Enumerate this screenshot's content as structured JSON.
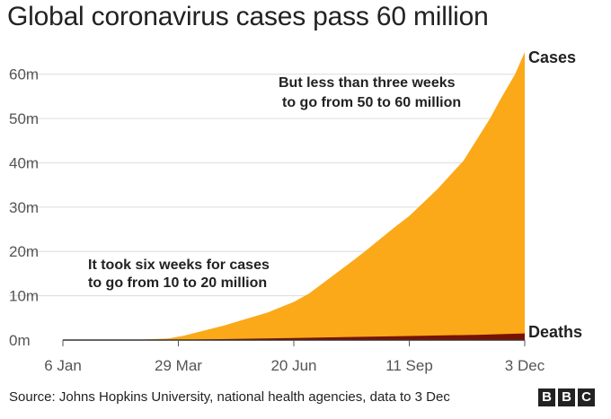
{
  "title": "Global coronavirus cases pass 60 million",
  "source": "Source: Johns Hopkins University, national health agencies, data to 3 Dec",
  "logo": [
    "B",
    "B",
    "C"
  ],
  "chart_data": {
    "type": "area",
    "x_start": "2020-01-06",
    "x_end": "2020-12-03",
    "xticks": [
      {
        "label": "6 Jan",
        "date": "2020-01-06"
      },
      {
        "label": "29 Mar",
        "date": "2020-03-29"
      },
      {
        "label": "20 Jun",
        "date": "2020-06-20"
      },
      {
        "label": "11 Sep",
        "date": "2020-09-11"
      },
      {
        "label": "3 Dec",
        "date": "2020-12-03"
      }
    ],
    "yticks": [
      {
        "label": "0m",
        "value": 0
      },
      {
        "label": "10m",
        "value": 10
      },
      {
        "label": "20m",
        "value": 20
      },
      {
        "label": "30m",
        "value": 30
      },
      {
        "label": "40m",
        "value": 40
      },
      {
        "label": "50m",
        "value": 50
      },
      {
        "label": "60m",
        "value": 60
      }
    ],
    "ylim": [
      0,
      65
    ],
    "yunit": "million",
    "grid": "horizontal",
    "series": [
      {
        "name": "Cases",
        "color": "#fba919",
        "points": [
          [
            "2020-01-06",
            0
          ],
          [
            "2020-02-01",
            0.01
          ],
          [
            "2020-03-01",
            0.09
          ],
          [
            "2020-03-22",
            0.35
          ],
          [
            "2020-04-02",
            1
          ],
          [
            "2020-05-01",
            3.3
          ],
          [
            "2020-06-01",
            6.2
          ],
          [
            "2020-06-20",
            8.6
          ],
          [
            "2020-07-01",
            10.5
          ],
          [
            "2020-08-01",
            17.8
          ],
          [
            "2020-08-10",
            20
          ],
          [
            "2020-09-01",
            25.6
          ],
          [
            "2020-09-11",
            28
          ],
          [
            "2020-10-01",
            34
          ],
          [
            "2020-10-20",
            40.5
          ],
          [
            "2020-11-01",
            46.5
          ],
          [
            "2020-11-08",
            50
          ],
          [
            "2020-11-15",
            54
          ],
          [
            "2020-11-26",
            60
          ],
          [
            "2020-12-03",
            65
          ]
        ]
      },
      {
        "name": "Deaths",
        "color": "#7b1100",
        "points": [
          [
            "2020-01-06",
            0
          ],
          [
            "2020-03-29",
            0.033
          ],
          [
            "2020-06-20",
            0.46
          ],
          [
            "2020-09-11",
            0.91
          ],
          [
            "2020-11-01",
            1.2
          ],
          [
            "2020-12-03",
            1.5
          ]
        ]
      }
    ],
    "annotations": [
      {
        "lines": [
          "But less than three weeks",
          "to go from 50 to 60 million"
        ]
      },
      {
        "lines": [
          "It took six weeks for cases",
          "to go from 10 to 20 million"
        ]
      }
    ]
  }
}
